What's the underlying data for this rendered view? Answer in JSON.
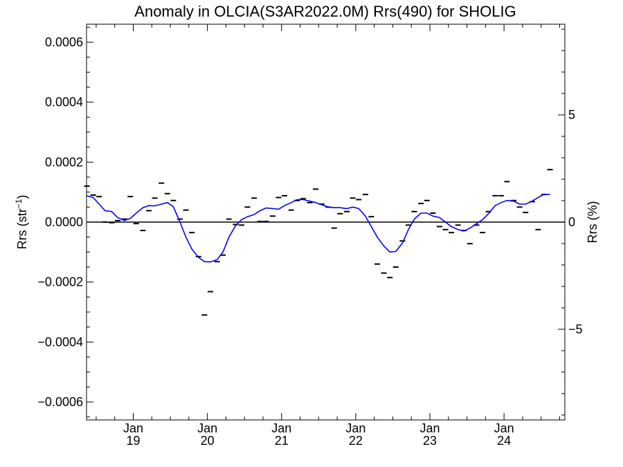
{
  "chart_data": {
    "type": "line",
    "title": "Anomaly in OLCIA(S3AR2022.0M) Rrs(490) for SHOLIG",
    "ylabel_left": {
      "main": "Rrs (str",
      "sup": "−1",
      "close": ")"
    },
    "ylabel_right": "Rrs (%)",
    "ylim_left": [
      -0.00066,
      0.00066
    ],
    "ylim_right": [
      -9.23,
      9.23
    ],
    "xlim": [
      2018.37,
      2024.82
    ],
    "grid": false,
    "left_ticks": [
      {
        "value": 0.0006,
        "label": "0.0006"
      },
      {
        "value": 0.0004,
        "label": "0.0004"
      },
      {
        "value": 0.0002,
        "label": "0.0002"
      },
      {
        "value": 0.0,
        "label": "0.0000"
      },
      {
        "value": -0.0002,
        "label": "−0.0002"
      },
      {
        "value": -0.0004,
        "label": "−0.0004"
      },
      {
        "value": -0.0006,
        "label": "−0.0006"
      }
    ],
    "right_ticks": [
      {
        "value": 5,
        "label": "5"
      },
      {
        "value": 0,
        "label": "0"
      },
      {
        "value": -5,
        "label": "−5"
      }
    ],
    "x_ticks": [
      {
        "value": 2019.0,
        "line1": "Jan",
        "line2": "19"
      },
      {
        "value": 2020.0,
        "line1": "Jan",
        "line2": "20"
      },
      {
        "value": 2021.0,
        "line1": "Jan",
        "line2": "21"
      },
      {
        "value": 2022.0,
        "line1": "Jan",
        "line2": "22"
      },
      {
        "value": 2023.0,
        "line1": "Jan",
        "line2": "23"
      },
      {
        "value": 2024.0,
        "line1": "Jan",
        "line2": "24"
      }
    ],
    "series": [
      {
        "kind": "monthly-anomaly-markers",
        "color": "#000000",
        "points": [
          [
            2018.375,
            0.00012
          ],
          [
            2018.46,
            9e-05
          ],
          [
            2018.54,
            8.5e-05
          ],
          [
            2018.62,
            0.0
          ],
          [
            2018.71,
            -2e-06
          ],
          [
            2018.79,
            5e-06
          ],
          [
            2018.88,
            1e-05
          ],
          [
            2018.96,
            8.5e-05
          ],
          [
            2019.04,
            -5e-06
          ],
          [
            2019.13,
            -2.8e-05
          ],
          [
            2019.21,
            3.8e-05
          ],
          [
            2019.29,
            8e-05
          ],
          [
            2019.38,
            0.00013
          ],
          [
            2019.46,
            9.5e-05
          ],
          [
            2019.54,
            7.2e-05
          ],
          [
            2019.63,
            1e-05
          ],
          [
            2019.71,
            4e-05
          ],
          [
            2019.79,
            -3.5e-05
          ],
          [
            2019.88,
            -0.000115
          ],
          [
            2019.96,
            -0.00031
          ],
          [
            2020.04,
            -0.000232
          ],
          [
            2020.13,
            -0.000132
          ],
          [
            2020.21,
            -0.00011
          ],
          [
            2020.29,
            1e-05
          ],
          [
            2020.38,
            -8e-06
          ],
          [
            2020.46,
            -1e-05
          ],
          [
            2020.54,
            5e-05
          ],
          [
            2020.63,
            8e-05
          ],
          [
            2020.71,
            2e-06
          ],
          [
            2020.79,
            2e-06
          ],
          [
            2020.88,
            2e-05
          ],
          [
            2020.96,
            8.2e-05
          ],
          [
            2021.04,
            8.8e-05
          ],
          [
            2021.13,
            4e-05
          ],
          [
            2021.21,
            7.2e-05
          ],
          [
            2021.29,
            7.8e-05
          ],
          [
            2021.38,
            6.5e-05
          ],
          [
            2021.46,
            0.00011
          ],
          [
            2021.54,
            6e-05
          ],
          [
            2021.63,
            5e-05
          ],
          [
            2021.71,
            -2e-05
          ],
          [
            2021.79,
            2.8e-05
          ],
          [
            2021.88,
            3.5e-05
          ],
          [
            2021.96,
            8e-05
          ],
          [
            2022.04,
            7.5e-05
          ],
          [
            2022.13,
            9.2e-05
          ],
          [
            2022.21,
            1.8e-05
          ],
          [
            2022.29,
            -0.00014
          ],
          [
            2022.38,
            -0.00017
          ],
          [
            2022.46,
            -0.000185
          ],
          [
            2022.54,
            -0.00015
          ],
          [
            2022.63,
            -6.3e-05
          ],
          [
            2022.71,
            -1e-05
          ],
          [
            2022.79,
            3.5e-05
          ],
          [
            2022.88,
            6.2e-05
          ],
          [
            2022.96,
            7.2e-05
          ],
          [
            2023.04,
            3e-05
          ],
          [
            2023.13,
            -1.5e-05
          ],
          [
            2023.21,
            -2.5e-05
          ],
          [
            2023.29,
            -3.5e-05
          ],
          [
            2023.38,
            -1e-05
          ],
          [
            2023.46,
            -2.8e-05
          ],
          [
            2023.54,
            -7.2e-05
          ],
          [
            2023.63,
            -1e-05
          ],
          [
            2023.71,
            -3.5e-05
          ],
          [
            2023.79,
            3.5e-05
          ],
          [
            2023.88,
            8.8e-05
          ],
          [
            2023.96,
            8.8e-05
          ],
          [
            2024.04,
            0.000135
          ],
          [
            2024.13,
            7.2e-05
          ],
          [
            2024.21,
            5e-05
          ],
          [
            2024.29,
            3.2e-05
          ],
          [
            2024.38,
            6.8e-05
          ],
          [
            2024.46,
            -2.5e-05
          ],
          [
            2024.54,
            9.2e-05
          ],
          [
            2024.62,
            0.000175
          ]
        ]
      },
      {
        "kind": "smoothed-line",
        "color": "#0000ff",
        "points": [
          [
            2018.37,
            8.8e-05
          ],
          [
            2018.46,
            8.2e-05
          ],
          [
            2018.54,
            6e-05
          ],
          [
            2018.62,
            3.8e-05
          ],
          [
            2018.71,
            3.5e-05
          ],
          [
            2018.79,
            1.5e-05
          ],
          [
            2018.88,
            5e-06
          ],
          [
            2018.96,
            1.2e-05
          ],
          [
            2019.04,
            3e-05
          ],
          [
            2019.13,
            4.8e-05
          ],
          [
            2019.21,
            5.5e-05
          ],
          [
            2019.29,
            5.4e-05
          ],
          [
            2019.38,
            6e-05
          ],
          [
            2019.46,
            6.5e-05
          ],
          [
            2019.54,
            5.2e-05
          ],
          [
            2019.63,
            0.0
          ],
          [
            2019.71,
            -5e-05
          ],
          [
            2019.79,
            -9e-05
          ],
          [
            2019.88,
            -0.000118
          ],
          [
            2019.96,
            -0.000132
          ],
          [
            2020.04,
            -0.000133
          ],
          [
            2020.13,
            -0.000125
          ],
          [
            2020.21,
            -0.0001
          ],
          [
            2020.29,
            -5e-05
          ],
          [
            2020.38,
            -1.2e-05
          ],
          [
            2020.46,
            8e-06
          ],
          [
            2020.54,
            1.8e-05
          ],
          [
            2020.63,
            2.5e-05
          ],
          [
            2020.71,
            3.8e-05
          ],
          [
            2020.79,
            4.7e-05
          ],
          [
            2020.88,
            4.5e-05
          ],
          [
            2020.96,
            4.3e-05
          ],
          [
            2021.04,
            5.5e-05
          ],
          [
            2021.13,
            6.5e-05
          ],
          [
            2021.21,
            7.5e-05
          ],
          [
            2021.29,
            7.5e-05
          ],
          [
            2021.38,
            7e-05
          ],
          [
            2021.46,
            6.5e-05
          ],
          [
            2021.54,
            5.8e-05
          ],
          [
            2021.63,
            5e-05
          ],
          [
            2021.71,
            4.8e-05
          ],
          [
            2021.79,
            4.8e-05
          ],
          [
            2021.88,
            4.5e-05
          ],
          [
            2021.96,
            5e-05
          ],
          [
            2022.04,
            4.5e-05
          ],
          [
            2022.13,
            2e-05
          ],
          [
            2022.21,
            -1.5e-05
          ],
          [
            2022.29,
            -5e-05
          ],
          [
            2022.38,
            -8e-05
          ],
          [
            2022.46,
            -0.0001
          ],
          [
            2022.54,
            -9.8e-05
          ],
          [
            2022.63,
            -7e-05
          ],
          [
            2022.71,
            -2.5e-05
          ],
          [
            2022.79,
            1e-05
          ],
          [
            2022.88,
            3e-05
          ],
          [
            2022.96,
            3e-05
          ],
          [
            2023.04,
            2e-05
          ],
          [
            2023.13,
            1.5e-05
          ],
          [
            2023.21,
            0.0
          ],
          [
            2023.29,
            -1.5e-05
          ],
          [
            2023.38,
            -2.5e-05
          ],
          [
            2023.46,
            -3e-05
          ],
          [
            2023.54,
            -2e-05
          ],
          [
            2023.63,
            -5e-06
          ],
          [
            2023.71,
            8e-06
          ],
          [
            2023.79,
            2.8e-05
          ],
          [
            2023.88,
            5.5e-05
          ],
          [
            2023.96,
            6.5e-05
          ],
          [
            2024.04,
            7.2e-05
          ],
          [
            2024.13,
            7e-05
          ],
          [
            2024.21,
            6e-05
          ],
          [
            2024.29,
            6e-05
          ],
          [
            2024.38,
            7e-05
          ],
          [
            2024.46,
            8.2e-05
          ],
          [
            2024.54,
            9.3e-05
          ],
          [
            2024.62,
            9.2e-05
          ]
        ]
      }
    ],
    "zero_line": true
  }
}
